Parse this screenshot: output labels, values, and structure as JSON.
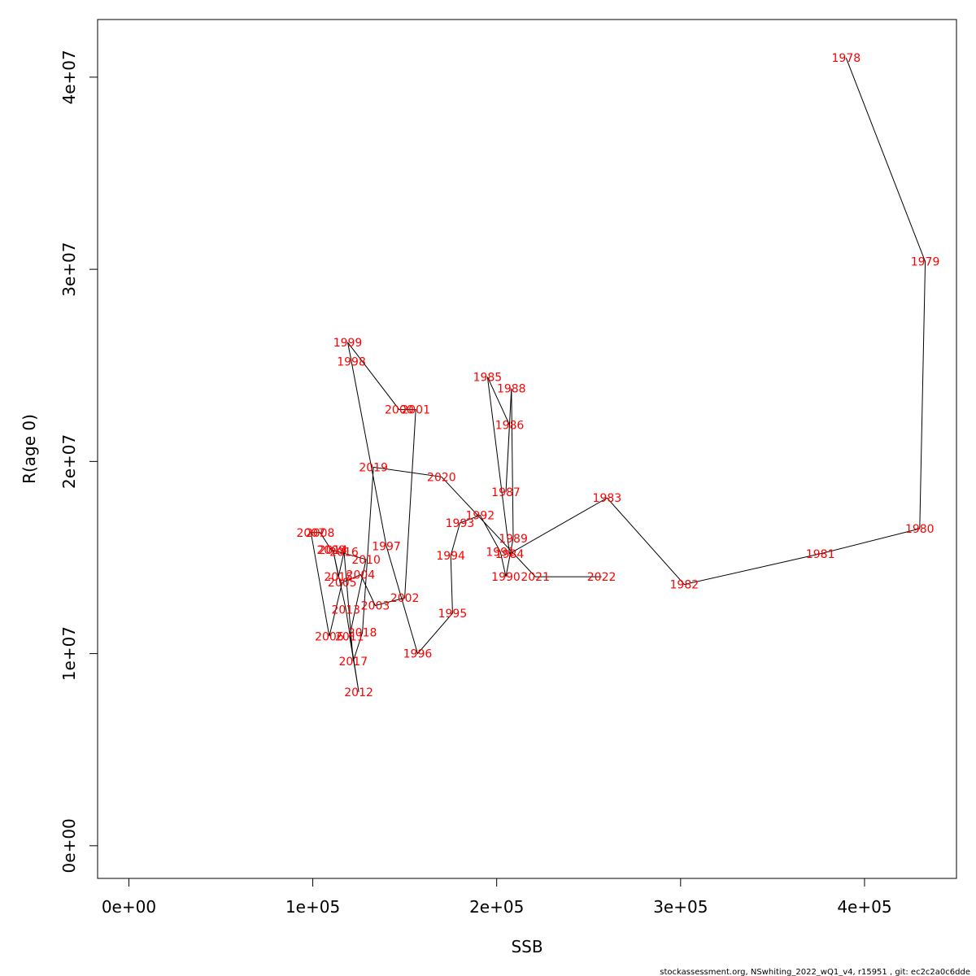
{
  "chart_data": {
    "type": "line",
    "xlabel": "SSB",
    "ylabel": "R(age 0)",
    "xlim": [
      -17000,
      450000
    ],
    "ylim": [
      -1700000,
      43000000
    ],
    "x_ticks": [
      0,
      100000,
      200000,
      300000,
      400000
    ],
    "x_tick_labels": [
      "0e+00",
      "1e+05",
      "2e+05",
      "3e+05",
      "4e+05"
    ],
    "y_ticks": [
      0,
      10000000,
      20000000,
      30000000,
      40000000
    ],
    "y_tick_labels": [
      "0e+00",
      "1e+07",
      "2e+07",
      "3e+07",
      "4e+07"
    ],
    "grid": false,
    "line_color": "#000000",
    "label_color": "#ff0000",
    "points": [
      {
        "label": "1978",
        "x": 390000,
        "y": 41000000
      },
      {
        "label": "1979",
        "x": 433000,
        "y": 30400000
      },
      {
        "label": "1980",
        "x": 430000,
        "y": 16500000
      },
      {
        "label": "1981",
        "x": 376000,
        "y": 15200000
      },
      {
        "label": "1982",
        "x": 302000,
        "y": 13600000
      },
      {
        "label": "1983",
        "x": 260000,
        "y": 18100000
      },
      {
        "label": "1984",
        "x": 207000,
        "y": 15200000
      },
      {
        "label": "1985",
        "x": 195000,
        "y": 24400000
      },
      {
        "label": "1986",
        "x": 207000,
        "y": 21900000
      },
      {
        "label": "1987",
        "x": 205000,
        "y": 18400000
      },
      {
        "label": "1988",
        "x": 208000,
        "y": 23800000
      },
      {
        "label": "1989",
        "x": 209000,
        "y": 16000000
      },
      {
        "label": "1990",
        "x": 205000,
        "y": 14000000
      },
      {
        "label": "1991",
        "x": 202000,
        "y": 15300000
      },
      {
        "label": "1992",
        "x": 191000,
        "y": 17200000
      },
      {
        "label": "1993",
        "x": 180000,
        "y": 16800000
      },
      {
        "label": "1994",
        "x": 175000,
        "y": 15100000
      },
      {
        "label": "1995",
        "x": 176000,
        "y": 12100000
      },
      {
        "label": "1996",
        "x": 157000,
        "y": 10000000
      },
      {
        "label": "1997",
        "x": 140000,
        "y": 15600000
      },
      {
        "label": "1998",
        "x": 121000,
        "y": 25200000
      },
      {
        "label": "1999",
        "x": 119000,
        "y": 26200000
      },
      {
        "label": "2000",
        "x": 147000,
        "y": 22700000
      },
      {
        "label": "2001",
        "x": 156000,
        "y": 22700000
      },
      {
        "label": "2002",
        "x": 150000,
        "y": 12900000
      },
      {
        "label": "2003",
        "x": 134000,
        "y": 12500000
      },
      {
        "label": "2004",
        "x": 126000,
        "y": 14100000
      },
      {
        "label": "2005",
        "x": 116000,
        "y": 13700000
      },
      {
        "label": "2006",
        "x": 109000,
        "y": 10900000
      },
      {
        "label": "2007",
        "x": 99000,
        "y": 16300000
      },
      {
        "label": "2008",
        "x": 104000,
        "y": 16300000
      },
      {
        "label": "2009",
        "x": 110000,
        "y": 15400000
      },
      {
        "label": "2010",
        "x": 129000,
        "y": 14900000
      },
      {
        "label": "2011",
        "x": 120000,
        "y": 10900000
      },
      {
        "label": "2012",
        "x": 125000,
        "y": 8000000
      },
      {
        "label": "2013",
        "x": 118000,
        "y": 12300000
      },
      {
        "label": "2014",
        "x": 111000,
        "y": 15400000
      },
      {
        "label": "2015",
        "x": 114000,
        "y": 14000000
      },
      {
        "label": "2016",
        "x": 117000,
        "y": 15300000
      },
      {
        "label": "2017",
        "x": 122000,
        "y": 9600000
      },
      {
        "label": "2018",
        "x": 127000,
        "y": 11100000
      },
      {
        "label": "2019",
        "x": 133000,
        "y": 19700000
      },
      {
        "label": "2020",
        "x": 170000,
        "y": 19200000
      },
      {
        "label": "2021",
        "x": 221000,
        "y": 14000000
      },
      {
        "label": "2022",
        "x": 257000,
        "y": 14000000
      }
    ]
  },
  "footer": "stockassessment.org, NSwhiting_2022_wQ1_v4, r15951 , git: ec2c2a0c6dde"
}
